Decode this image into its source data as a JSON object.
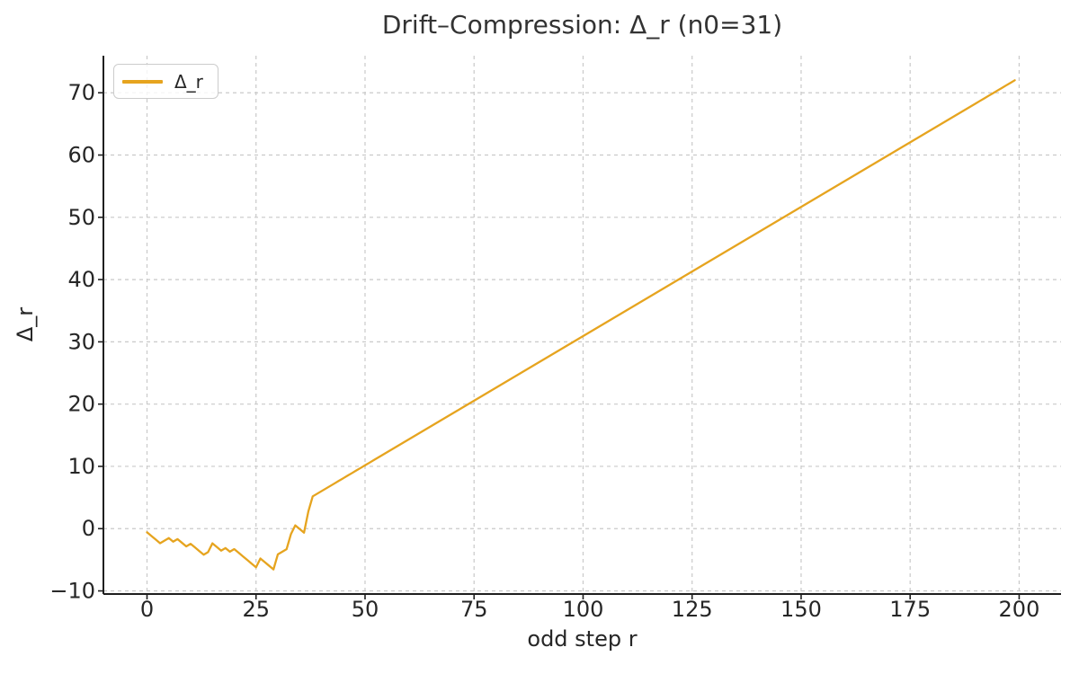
{
  "chart_data": {
    "type": "line",
    "title": "Drift–Compression: Δ_r (n0=31)",
    "xlabel": "odd step r",
    "ylabel": "Δ_r",
    "legend": [
      "Δ_r"
    ],
    "legend_position": "upper left",
    "grid": "dashed",
    "xticks": [
      0,
      25,
      50,
      75,
      100,
      125,
      150,
      175,
      200
    ],
    "yticks": [
      -10,
      0,
      10,
      20,
      30,
      40,
      50,
      60,
      70
    ],
    "xlim": [
      -10,
      209.6
    ],
    "ylim": [
      -10.5,
      75.95
    ],
    "x_start": 0,
    "x_step": 1,
    "line_color": "#E6A41F",
    "colors": {
      "grid": "#c9c9c9",
      "spine": "#1f1f1f",
      "tick_text": "#262626",
      "title_text": "#333333",
      "legend_border": "#cccccc"
    },
    "values": [
      -0.585,
      -1.17,
      -1.755,
      -2.34,
      -1.925,
      -1.51,
      -2.095,
      -1.68,
      -2.265,
      -2.85,
      -2.435,
      -3.02,
      -3.605,
      -4.189,
      -3.774,
      -2.359,
      -2.944,
      -3.529,
      -3.114,
      -3.699,
      -3.284,
      -3.869,
      -4.454,
      -5.039,
      -5.624,
      -6.209,
      -4.794,
      -5.379,
      -5.964,
      -6.549,
      -4.134,
      -3.719,
      -3.304,
      -0.889,
      0.526,
      -0.059,
      -0.644,
      2.771,
      5.186,
      5.602,
      6.017,
      6.432,
      6.847,
      7.262,
      7.677,
      8.092,
      8.507,
      8.922,
      9.337,
      9.752,
      10.167,
      10.582,
      10.997,
      11.412,
      11.827,
      12.242,
      12.657,
      13.072,
      13.487,
      13.902,
      14.317,
      14.732,
      15.147,
      15.562,
      15.977,
      16.392,
      16.808,
      17.223,
      17.638,
      18.053,
      18.468,
      18.883,
      19.298,
      19.713,
      20.128,
      20.543,
      20.958,
      21.373,
      21.788,
      22.203,
      22.618,
      23.033,
      23.448,
      23.863,
      24.278,
      24.693,
      25.108,
      25.523,
      25.938,
      26.353,
      26.768,
      27.183,
      27.598,
      28.014,
      28.429,
      28.844,
      29.259,
      29.674,
      30.089,
      30.504,
      30.919,
      31.334,
      31.749,
      32.164,
      32.579,
      32.994,
      33.409,
      33.824,
      34.239,
      34.654,
      35.069,
      35.484,
      35.899,
      36.314,
      36.729,
      37.144,
      37.559,
      37.974,
      38.389,
      38.805,
      39.22,
      39.635,
      40.05,
      40.465,
      40.88,
      41.295,
      41.71,
      42.125,
      42.54,
      42.955,
      43.37,
      43.785,
      44.2,
      44.615,
      45.03,
      45.445,
      45.86,
      46.275,
      46.69,
      47.105,
      47.52,
      47.935,
      48.35,
      48.765,
      49.18,
      49.595,
      50.011,
      50.426,
      50.841,
      51.256,
      51.671,
      52.086,
      52.501,
      52.916,
      53.331,
      53.746,
      54.161,
      54.576,
      54.991,
      55.406,
      55.821,
      56.236,
      56.651,
      57.066,
      57.481,
      57.896,
      58.311,
      58.726,
      59.141,
      59.556,
      59.971,
      60.386,
      60.801,
      61.217,
      61.632,
      62.047,
      62.462,
      62.877,
      63.292,
      63.707,
      64.122,
      64.537,
      64.952,
      65.367,
      65.782,
      66.197,
      66.612,
      67.027,
      67.442,
      67.857,
      68.272,
      68.687,
      69.102,
      69.517,
      69.932,
      70.347,
      70.762,
      71.177,
      71.592,
      72.008
    ]
  }
}
